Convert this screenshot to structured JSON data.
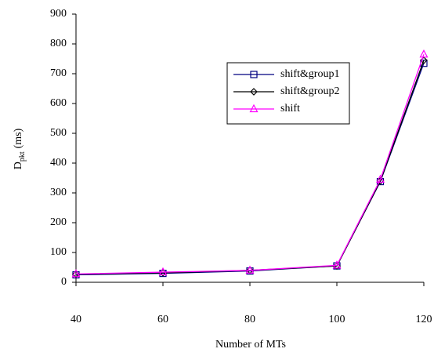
{
  "chart_data": {
    "type": "line",
    "x_label": "Number of MTs",
    "y_label": "D",
    "y_label_subscript": "pkt",
    "y_label_unit": "(ms)",
    "x": [
      40,
      60,
      80,
      100,
      110,
      120
    ],
    "series": [
      {
        "name": "shift&group1",
        "color": "#000080",
        "marker": "square",
        "values": [
          25,
          30,
          38,
          55,
          338,
          735
        ]
      },
      {
        "name": "shift&group2",
        "color": "#000000",
        "marker": "diamond",
        "values": [
          27,
          32,
          40,
          55,
          340,
          745
        ]
      },
      {
        "name": "shift",
        "color": "#ff00ff",
        "marker": "triangle",
        "values": [
          28,
          34,
          40,
          57,
          345,
          765
        ]
      }
    ],
    "xlim": [
      40,
      120
    ],
    "xticks": [
      40,
      60,
      80,
      100,
      120
    ],
    "ylim": [
      0,
      900
    ],
    "yticks": [
      0,
      100,
      200,
      300,
      400,
      500,
      600,
      700,
      800,
      900
    ],
    "grid": false,
    "legend": "center"
  }
}
